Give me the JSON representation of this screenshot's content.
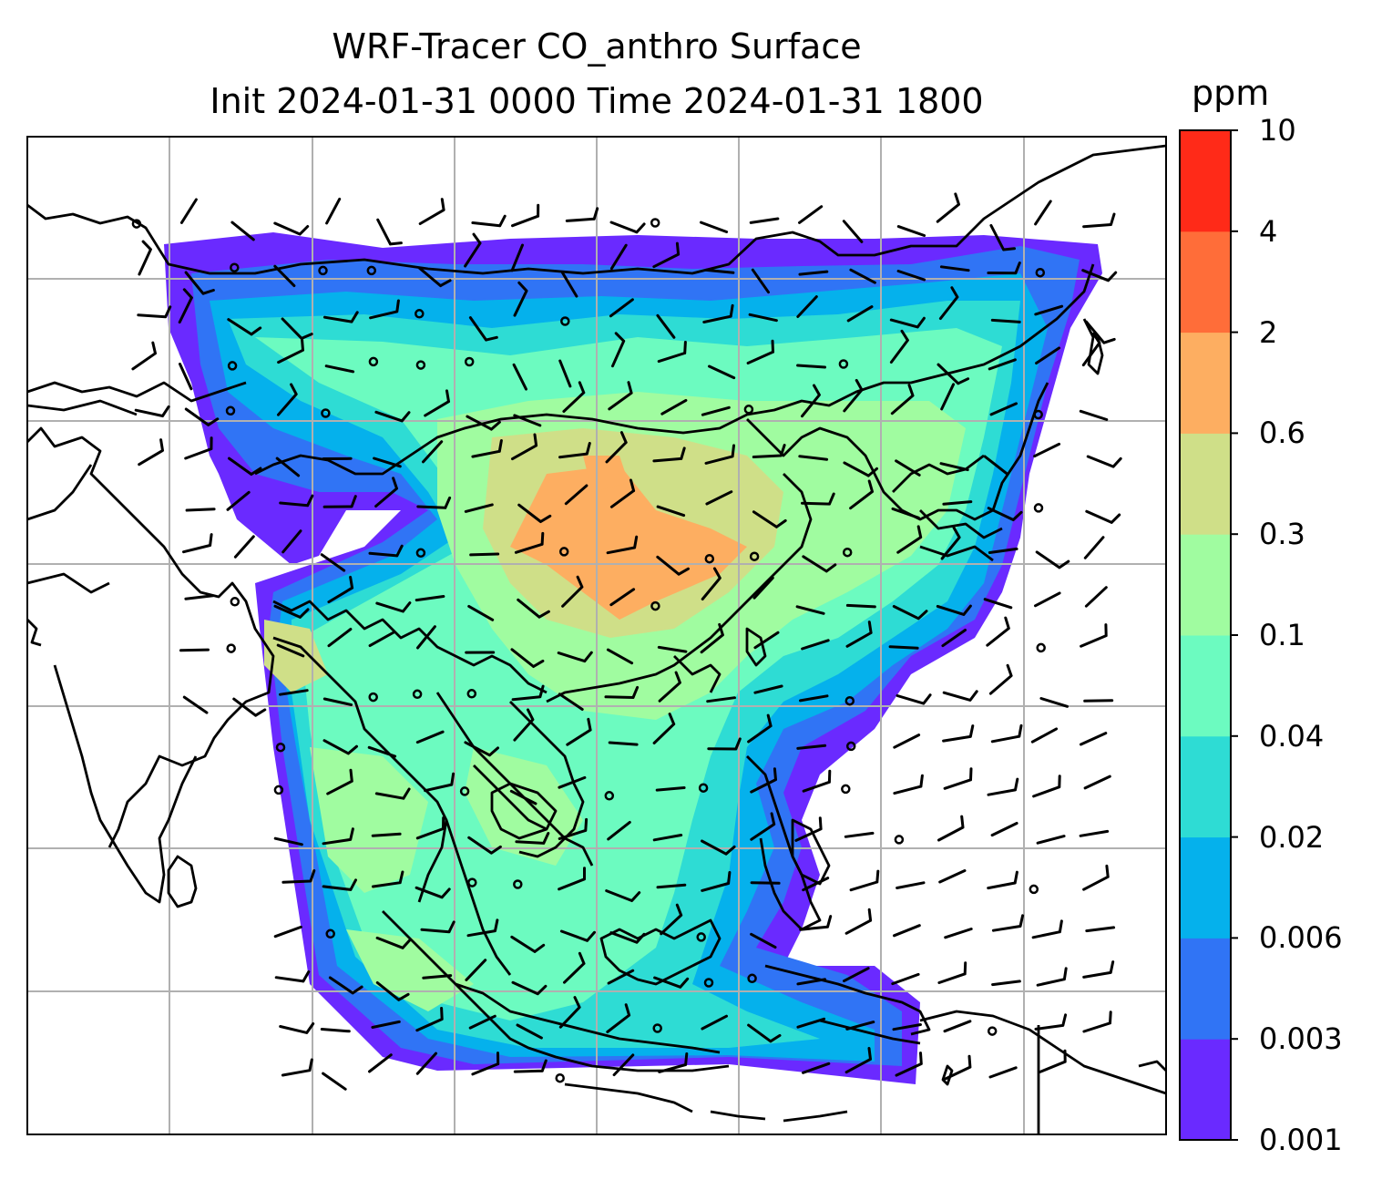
{
  "title": {
    "line1": "WRF-Tracer CO_anthro Surface",
    "line2": "Init 2024-01-31 0000 Time 2024-01-31 1800"
  },
  "colorbar": {
    "unit": "ppm",
    "ticks": [
      "0.001",
      "0.003",
      "0.006",
      "0.02",
      "0.04",
      "0.1",
      "0.3",
      "0.6",
      "2",
      "4",
      "10"
    ],
    "colors": [
      "#6a2aff",
      "#3074f5",
      "#05b1ec",
      "#2edcd4",
      "#6cfbc0",
      "#a0fca0",
      "#cfdf88",
      "#fdae61",
      "#ff6d39",
      "#ff2a18"
    ]
  },
  "map": {
    "background": "#ffffff",
    "coastline_color": "#000000",
    "gridline_color": "#b0b0b0"
  }
}
